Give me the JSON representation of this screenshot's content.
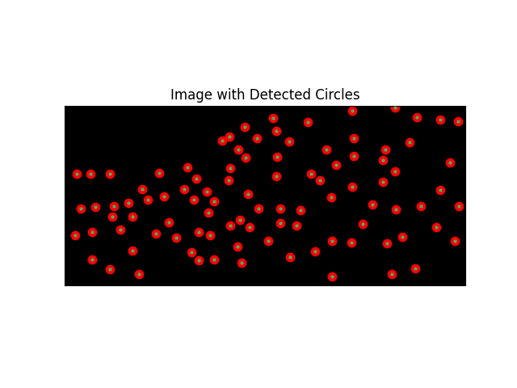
{
  "chart_data": {
    "type": "scatter",
    "title": "Image with Detected Circles",
    "x": [
      15,
      32,
      56,
      20,
      38,
      61,
      79,
      96,
      117,
      103,
      123,
      59,
      84,
      13,
      34,
      69,
      84,
      34,
      56,
      92,
      152,
      163,
      148,
      160,
      176,
      185,
      178,
      129,
      113,
      138,
      166,
      180,
      157,
      166,
      185,
      195,
      204,
      223,
      238,
      215,
      224,
      205,
      203,
      227,
      240,
      217,
      205,
      229,
      214,
      219,
      258,
      262,
      278,
      301,
      263,
      262,
      267,
      292,
      267,
      287,
      252,
      279,
      310,
      305,
      316,
      324,
      336,
      330,
      331,
      331,
      356,
      358,
      358,
      356,
      381,
      369,
      355,
      409,
      436,
      465,
      487,
      427,
      397,
      394,
      409,
      394,
      477,
      465,
      410,
      441,
      488,
      460,
      418,
      399,
      483,
      405,
      434
    ],
    "y": [
      84,
      84,
      84,
      127,
      125,
      124,
      120,
      103,
      83,
      116,
      112,
      137,
      137,
      160,
      156,
      153,
      179,
      190,
      202,
      208,
      76,
      90,
      103,
      116,
      106,
      118,
      132,
      144,
      158,
      163,
      156,
      160,
      181,
      191,
      190,
      43,
      38,
      26,
      40,
      54,
      64,
      77,
      92,
      109,
      127,
      141,
      148,
      150,
      174,
      194,
      15,
      31,
      44,
      20,
      63,
      87,
      127,
      129,
      145,
      148,
      167,
      187,
      180,
      84,
      92,
      54,
      73,
      113,
      167,
      211,
      6,
      40,
      62,
      100,
      122,
      146,
      169,
      2,
      14,
      17,
      19,
      45,
      54,
      67,
      81,
      94,
      70,
      104,
      128,
      124,
      124,
      150,
      162,
      170,
      167,
      208,
      201
    ],
    "color": "#ff0000",
    "marker": "o",
    "xlim": [
      0,
      496
    ],
    "ylim": [
      222,
      0
    ],
    "xticks": [],
    "yticks": [],
    "tick_labels": false
  }
}
